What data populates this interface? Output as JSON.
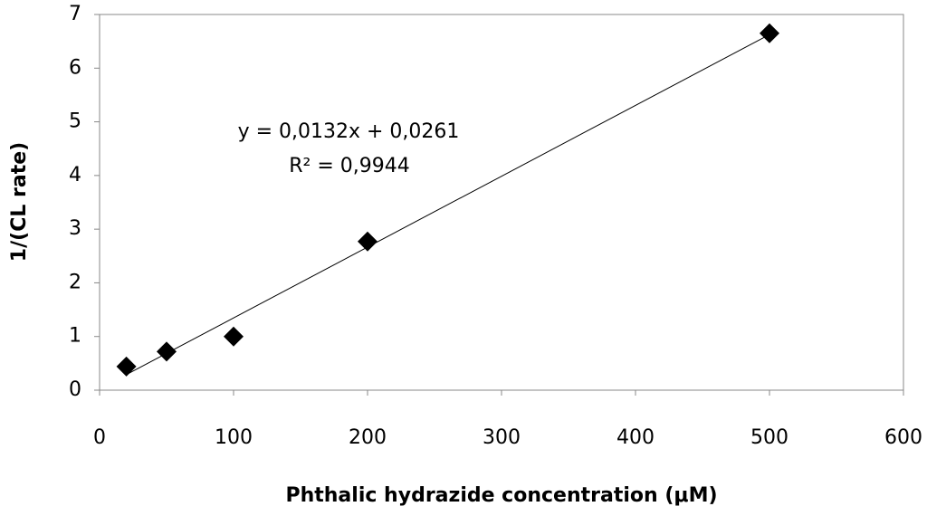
{
  "chart_data": {
    "type": "scatter",
    "x_label": "Phthalic hydrazide concentration (μM)",
    "y_label": "1/(CL rate)",
    "series": [
      {
        "x": [
          20,
          50,
          100,
          200,
          500
        ],
        "values": [
          0.44,
          0.72,
          1.0,
          2.77,
          6.65
        ],
        "color": "#000000"
      }
    ],
    "trendline": {
      "equation": "y = 0,0132x + 0,0261",
      "r2": "R² = 0,9944",
      "slope": 0.0132,
      "intercept": 0.0261
    },
    "xlim": [
      0,
      600
    ],
    "xticks": [
      0,
      100,
      200,
      300,
      400,
      500,
      600
    ],
    "ylim": [
      0,
      7
    ],
    "yticks": [
      0,
      1,
      2,
      3,
      4,
      5,
      6,
      7
    ],
    "grid": false
  }
}
